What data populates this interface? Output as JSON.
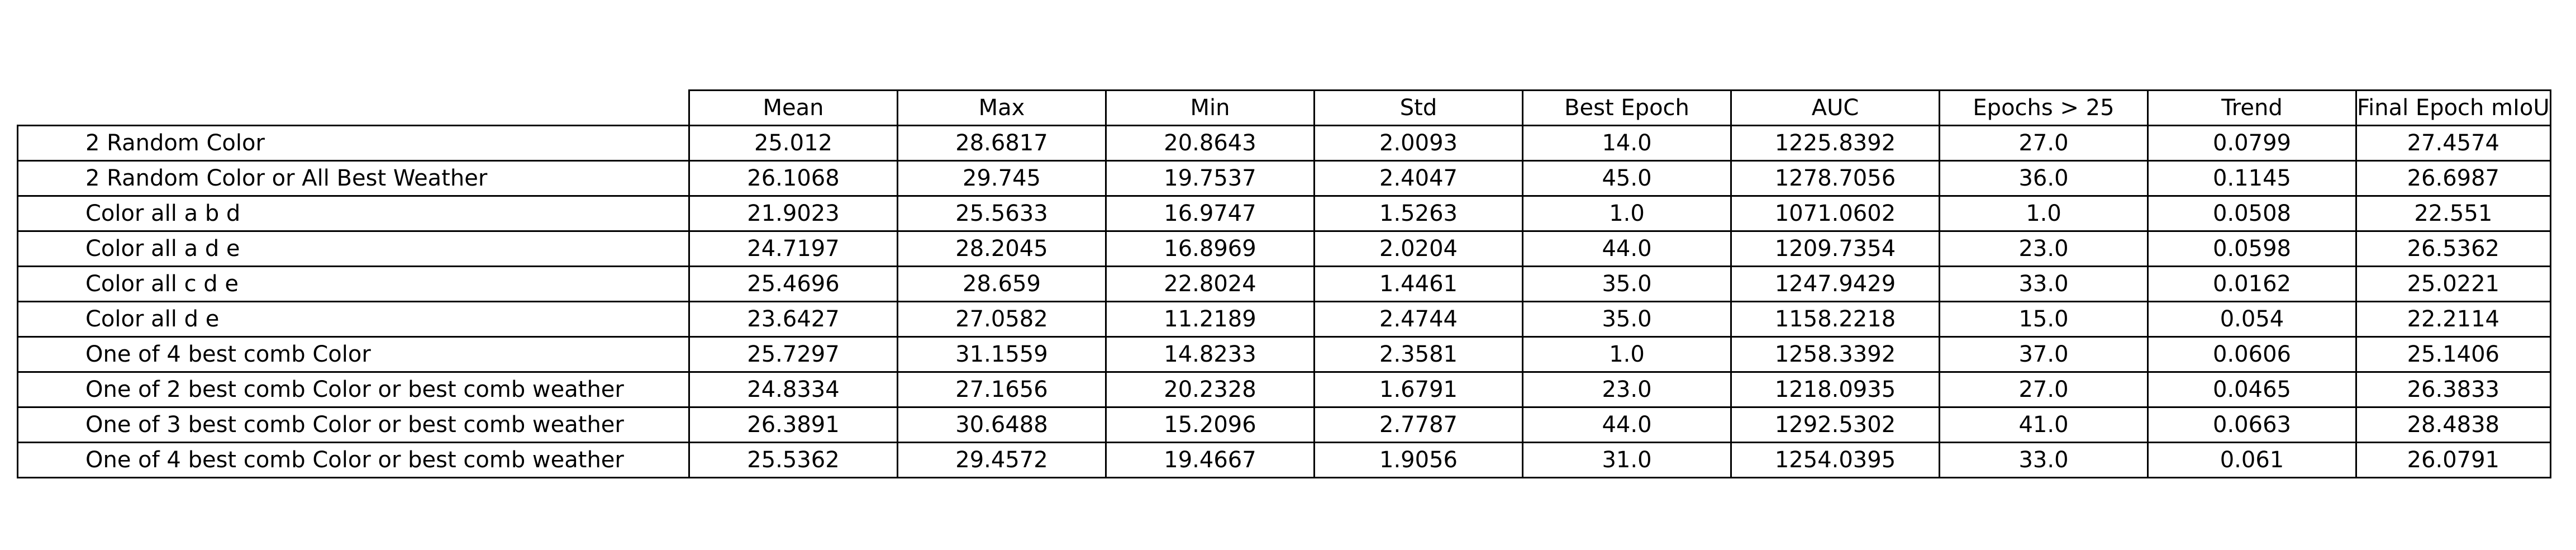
{
  "chart_data": {
    "type": "table",
    "columns": [
      "Mean",
      "Max",
      "Min",
      "Std",
      "Best Epoch",
      "AUC",
      "Epochs > 25",
      "Trend",
      "Final Epoch mIoU"
    ],
    "rows": [
      {
        "label": "2 Random Color",
        "values": [
          "25.012",
          "28.6817",
          "20.8643",
          "2.0093",
          "14.0",
          "1225.8392",
          "27.0",
          "0.0799",
          "27.4574"
        ]
      },
      {
        "label": "2 Random Color or All Best Weather",
        "values": [
          "26.1068",
          "29.745",
          "19.7537",
          "2.4047",
          "45.0",
          "1278.7056",
          "36.0",
          "0.1145",
          "26.6987"
        ]
      },
      {
        "label": "Color all a b d",
        "values": [
          "21.9023",
          "25.5633",
          "16.9747",
          "1.5263",
          "1.0",
          "1071.0602",
          "1.0",
          "0.0508",
          "22.551"
        ]
      },
      {
        "label": "Color all a d e",
        "values": [
          "24.7197",
          "28.2045",
          "16.8969",
          "2.0204",
          "44.0",
          "1209.7354",
          "23.0",
          "0.0598",
          "26.5362"
        ]
      },
      {
        "label": "Color all c d e",
        "values": [
          "25.4696",
          "28.659",
          "22.8024",
          "1.4461",
          "35.0",
          "1247.9429",
          "33.0",
          "0.0162",
          "25.0221"
        ]
      },
      {
        "label": "Color all d e",
        "values": [
          "23.6427",
          "27.0582",
          "11.2189",
          "2.4744",
          "35.0",
          "1158.2218",
          "15.0",
          "0.054",
          "22.2114"
        ]
      },
      {
        "label": "One of 4 best comb Color",
        "values": [
          "25.7297",
          "31.1559",
          "14.8233",
          "2.3581",
          "1.0",
          "1258.3392",
          "37.0",
          "0.0606",
          "25.1406"
        ]
      },
      {
        "label": "One of 2 best comb Color or best comb weather",
        "values": [
          "24.8334",
          "27.1656",
          "20.2328",
          "1.6791",
          "23.0",
          "1218.0935",
          "27.0",
          "0.0465",
          "26.3833"
        ]
      },
      {
        "label": "One of 3 best comb Color or best comb weather",
        "values": [
          "26.3891",
          "30.6488",
          "15.2096",
          "2.7787",
          "44.0",
          "1292.5302",
          "41.0",
          "0.0663",
          "28.4838"
        ]
      },
      {
        "label": "One of 4 best comb Color or best comb weather",
        "values": [
          "25.5362",
          "29.4572",
          "19.4667",
          "1.9056",
          "31.0",
          "1254.0395",
          "33.0",
          "0.061",
          "26.0791"
        ]
      }
    ]
  }
}
